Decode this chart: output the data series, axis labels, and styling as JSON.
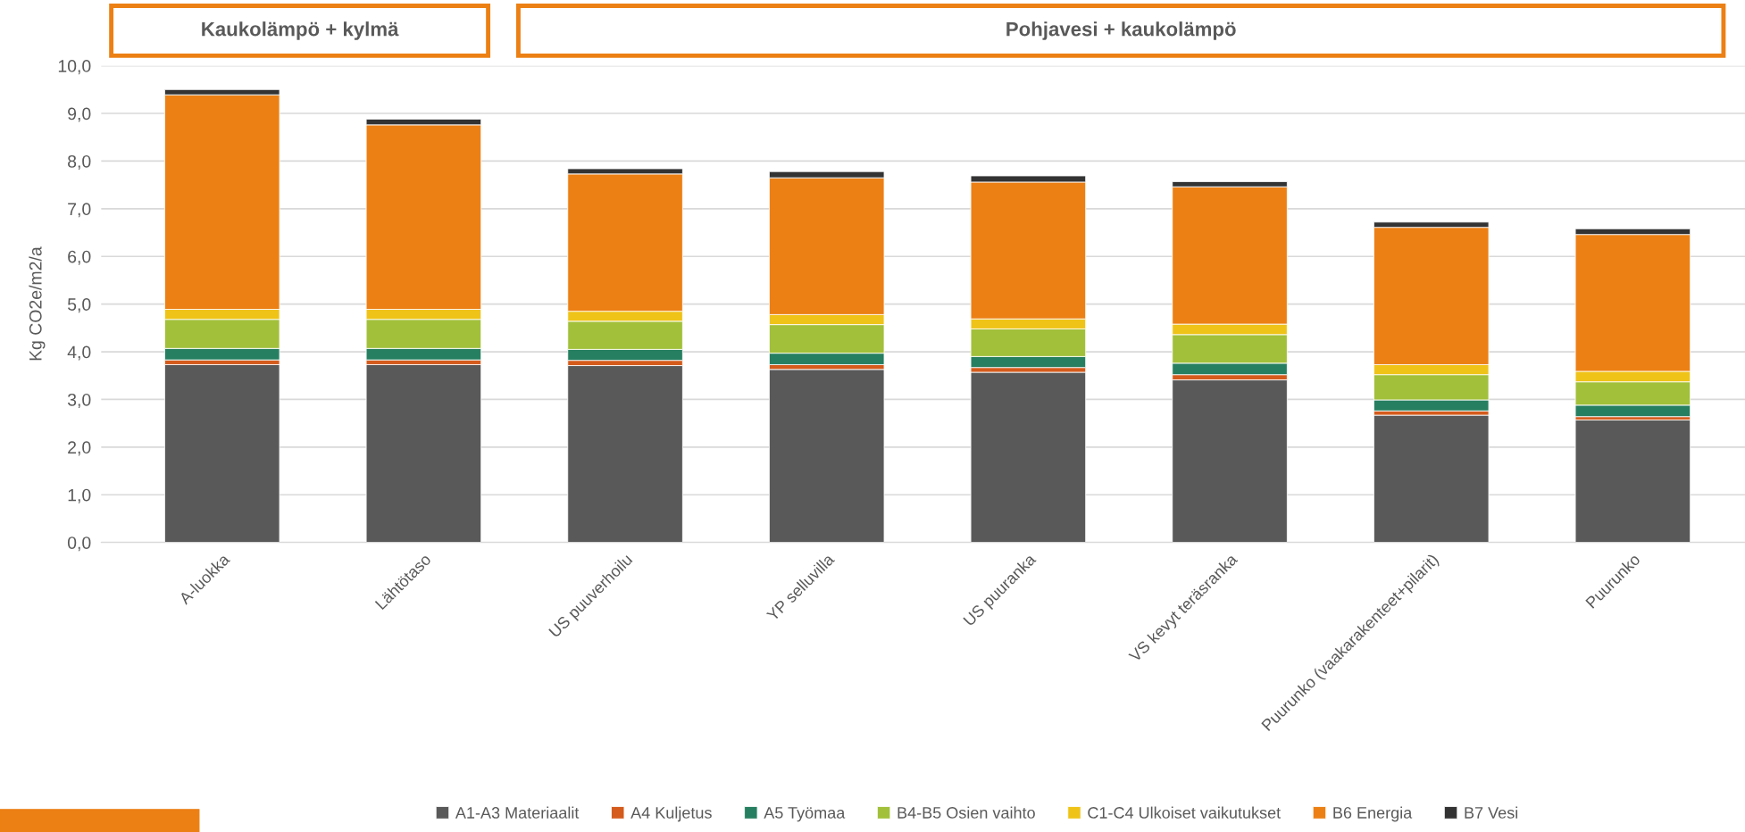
{
  "chart_data": {
    "type": "bar",
    "stacked": true,
    "ylabel": "Kg CO2e/m2/a",
    "annotations": [
      "Kaukolämpö + kylmä",
      "Pohjavesi + kaukolämpö"
    ],
    "categories": [
      "A-luokka",
      "Lähtötaso",
      "US puuverhoilu",
      "YP selluvilla",
      "US puuranka",
      "VS kevyt teräsranka",
      "Puurunko (vaakarakenteet+pilarit)",
      "Puurunko"
    ],
    "series": [
      {
        "name": "A1-A3 Materiaalit",
        "color": "#595959",
        "values": [
          3.73,
          3.73,
          3.71,
          3.63,
          3.57,
          3.41,
          2.67,
          2.57
        ]
      },
      {
        "name": "A4 Kuljetus",
        "color": "#d45b1c",
        "values": [
          0.1,
          0.1,
          0.11,
          0.1,
          0.1,
          0.11,
          0.09,
          0.07
        ]
      },
      {
        "name": "A5 Työmaa",
        "color": "#267f60",
        "values": [
          0.24,
          0.24,
          0.23,
          0.24,
          0.23,
          0.24,
          0.23,
          0.24
        ]
      },
      {
        "name": "B4-B5 Osien vaihto",
        "color": "#a2c03a",
        "values": [
          0.61,
          0.61,
          0.59,
          0.6,
          0.58,
          0.6,
          0.53,
          0.49
        ]
      },
      {
        "name": "C1-C4 Ulkoiset vaikutukset",
        "color": "#efc318",
        "values": [
          0.21,
          0.21,
          0.21,
          0.21,
          0.21,
          0.22,
          0.21,
          0.22
        ]
      },
      {
        "name": "B6 Energia",
        "color": "#ec8014",
        "values": [
          4.5,
          3.87,
          2.88,
          2.87,
          2.87,
          2.88,
          2.88,
          2.87
        ]
      },
      {
        "name": "B7 Vesi",
        "color": "#333333",
        "values": [
          0.11,
          0.12,
          0.11,
          0.13,
          0.13,
          0.11,
          0.11,
          0.12
        ]
      }
    ],
    "ylim": [
      0,
      10
    ],
    "yticks": [
      {
        "value": 0,
        "label": "0,0"
      },
      {
        "value": 1,
        "label": "1,0"
      },
      {
        "value": 2,
        "label": "2,0"
      },
      {
        "value": 3,
        "label": "3,0"
      },
      {
        "value": 4,
        "label": "4,0"
      },
      {
        "value": 5,
        "label": "5,0"
      },
      {
        "value": 6,
        "label": "6,0"
      },
      {
        "value": 7,
        "label": "7,0"
      },
      {
        "value": 8,
        "label": "8,0"
      },
      {
        "value": 9,
        "label": "9,0"
      },
      {
        "value": 10,
        "label": "10,0"
      }
    ],
    "grid": "y",
    "legend": "bottom"
  }
}
